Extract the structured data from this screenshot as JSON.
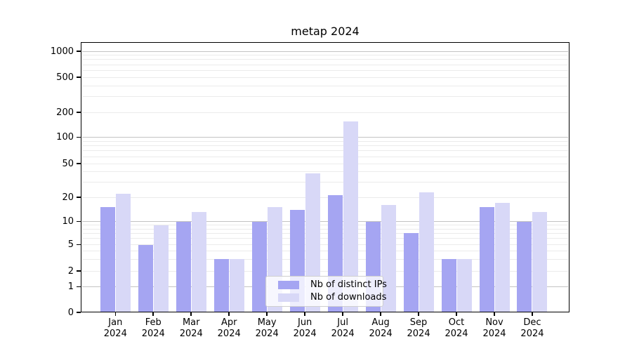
{
  "title": "metap 2024",
  "legend": {
    "items": [
      {
        "label": "Nb of distinct IPs",
        "color": "#a5a5f2"
      },
      {
        "label": "Nb of downloads",
        "color": "#d8d8f7"
      }
    ]
  },
  "chart_data": {
    "type": "bar",
    "title": "metap 2024",
    "categories": [
      "Jan",
      "Feb",
      "Mar",
      "Apr",
      "May",
      "Jun",
      "Jul",
      "Aug",
      "Sep",
      "Oct",
      "Nov",
      "Dec"
    ],
    "category_year": "2024",
    "series": [
      {
        "name": "Nb of distinct IPs",
        "color": "#a5a5f2",
        "values": [
          15,
          5,
          10,
          3,
          10,
          14,
          21,
          10,
          7,
          3,
          15,
          10
        ]
      },
      {
        "name": "Nb of downloads",
        "color": "#d8d8f7",
        "values": [
          22,
          9,
          13,
          3,
          15,
          38,
          155,
          16,
          23,
          3,
          17,
          13
        ]
      }
    ],
    "yscale": "symlog",
    "yticks": [
      0,
      1,
      2,
      5,
      10,
      20,
      50,
      100,
      200,
      500,
      1000
    ],
    "ytick_labels": [
      "0",
      "1",
      "2",
      "5",
      "10",
      "20",
      "50",
      "100",
      "200",
      "500",
      "1000"
    ],
    "ylim": [
      0,
      1300
    ],
    "grid": "on",
    "grid_major_color": "#c3c3c3",
    "grid_minor_color": "#ebebeb",
    "legend_position": "lower center inside",
    "xlabel": "",
    "ylabel": ""
  }
}
